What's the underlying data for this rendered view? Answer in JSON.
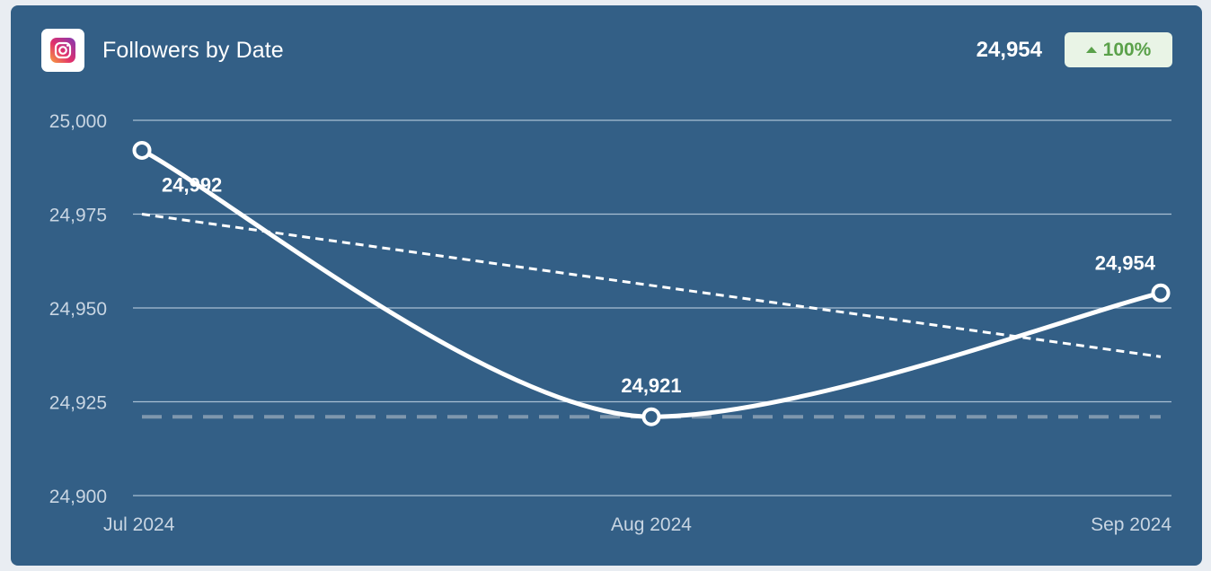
{
  "header": {
    "title": "Followers by Date",
    "total": "24,954",
    "change": "100%",
    "change_color": "#5aa14a",
    "icon": "instagram-icon"
  },
  "chart_data": {
    "type": "line",
    "title": "Followers by Date",
    "categories": [
      "Jul 2024",
      "Aug 2024",
      "Sep 2024"
    ],
    "series": [
      {
        "values": [
          24992,
          24921,
          24954
        ],
        "labels": [
          "24,992",
          "24,921",
          "24,954"
        ]
      }
    ],
    "trendline": [
      24975,
      24937
    ],
    "min_reference": 24921,
    "ylim": [
      24900,
      25000
    ],
    "yticks": [
      25000,
      24975,
      24950,
      24925,
      24900
    ],
    "ytick_labels": [
      "25,000",
      "24,975",
      "24,950",
      "24,925",
      "24,900"
    ],
    "grid": true,
    "colors": {
      "background": "#335f86",
      "line": "#ffffff",
      "grid": "#a9bfd3",
      "tick": "#c9d6e3",
      "reference": "#7f97ad"
    }
  }
}
